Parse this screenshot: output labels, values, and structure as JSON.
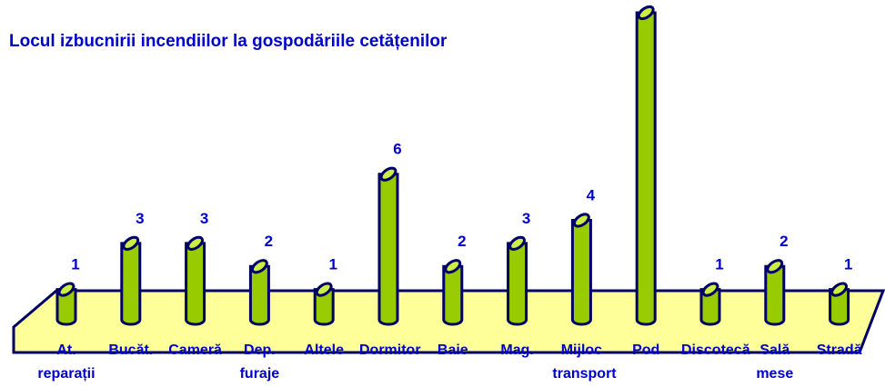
{
  "chart_data": {
    "type": "bar",
    "title": "Locul izbucnirii incendiilor la gospodăriile cetățenilor",
    "categories": [
      "At. reparații",
      "Bucăt.",
      "Cameră",
      "Dep. furaje",
      "Altele",
      "Dormitor",
      "Baie",
      "Mag.",
      "Mijloc transport",
      "Pod",
      "Discotecă",
      "Sală mese",
      "Stradă"
    ],
    "values": [
      1,
      3,
      3,
      2,
      1,
      6,
      2,
      3,
      4,
      13,
      1,
      2,
      1
    ],
    "color": "#99cc00"
  }
}
